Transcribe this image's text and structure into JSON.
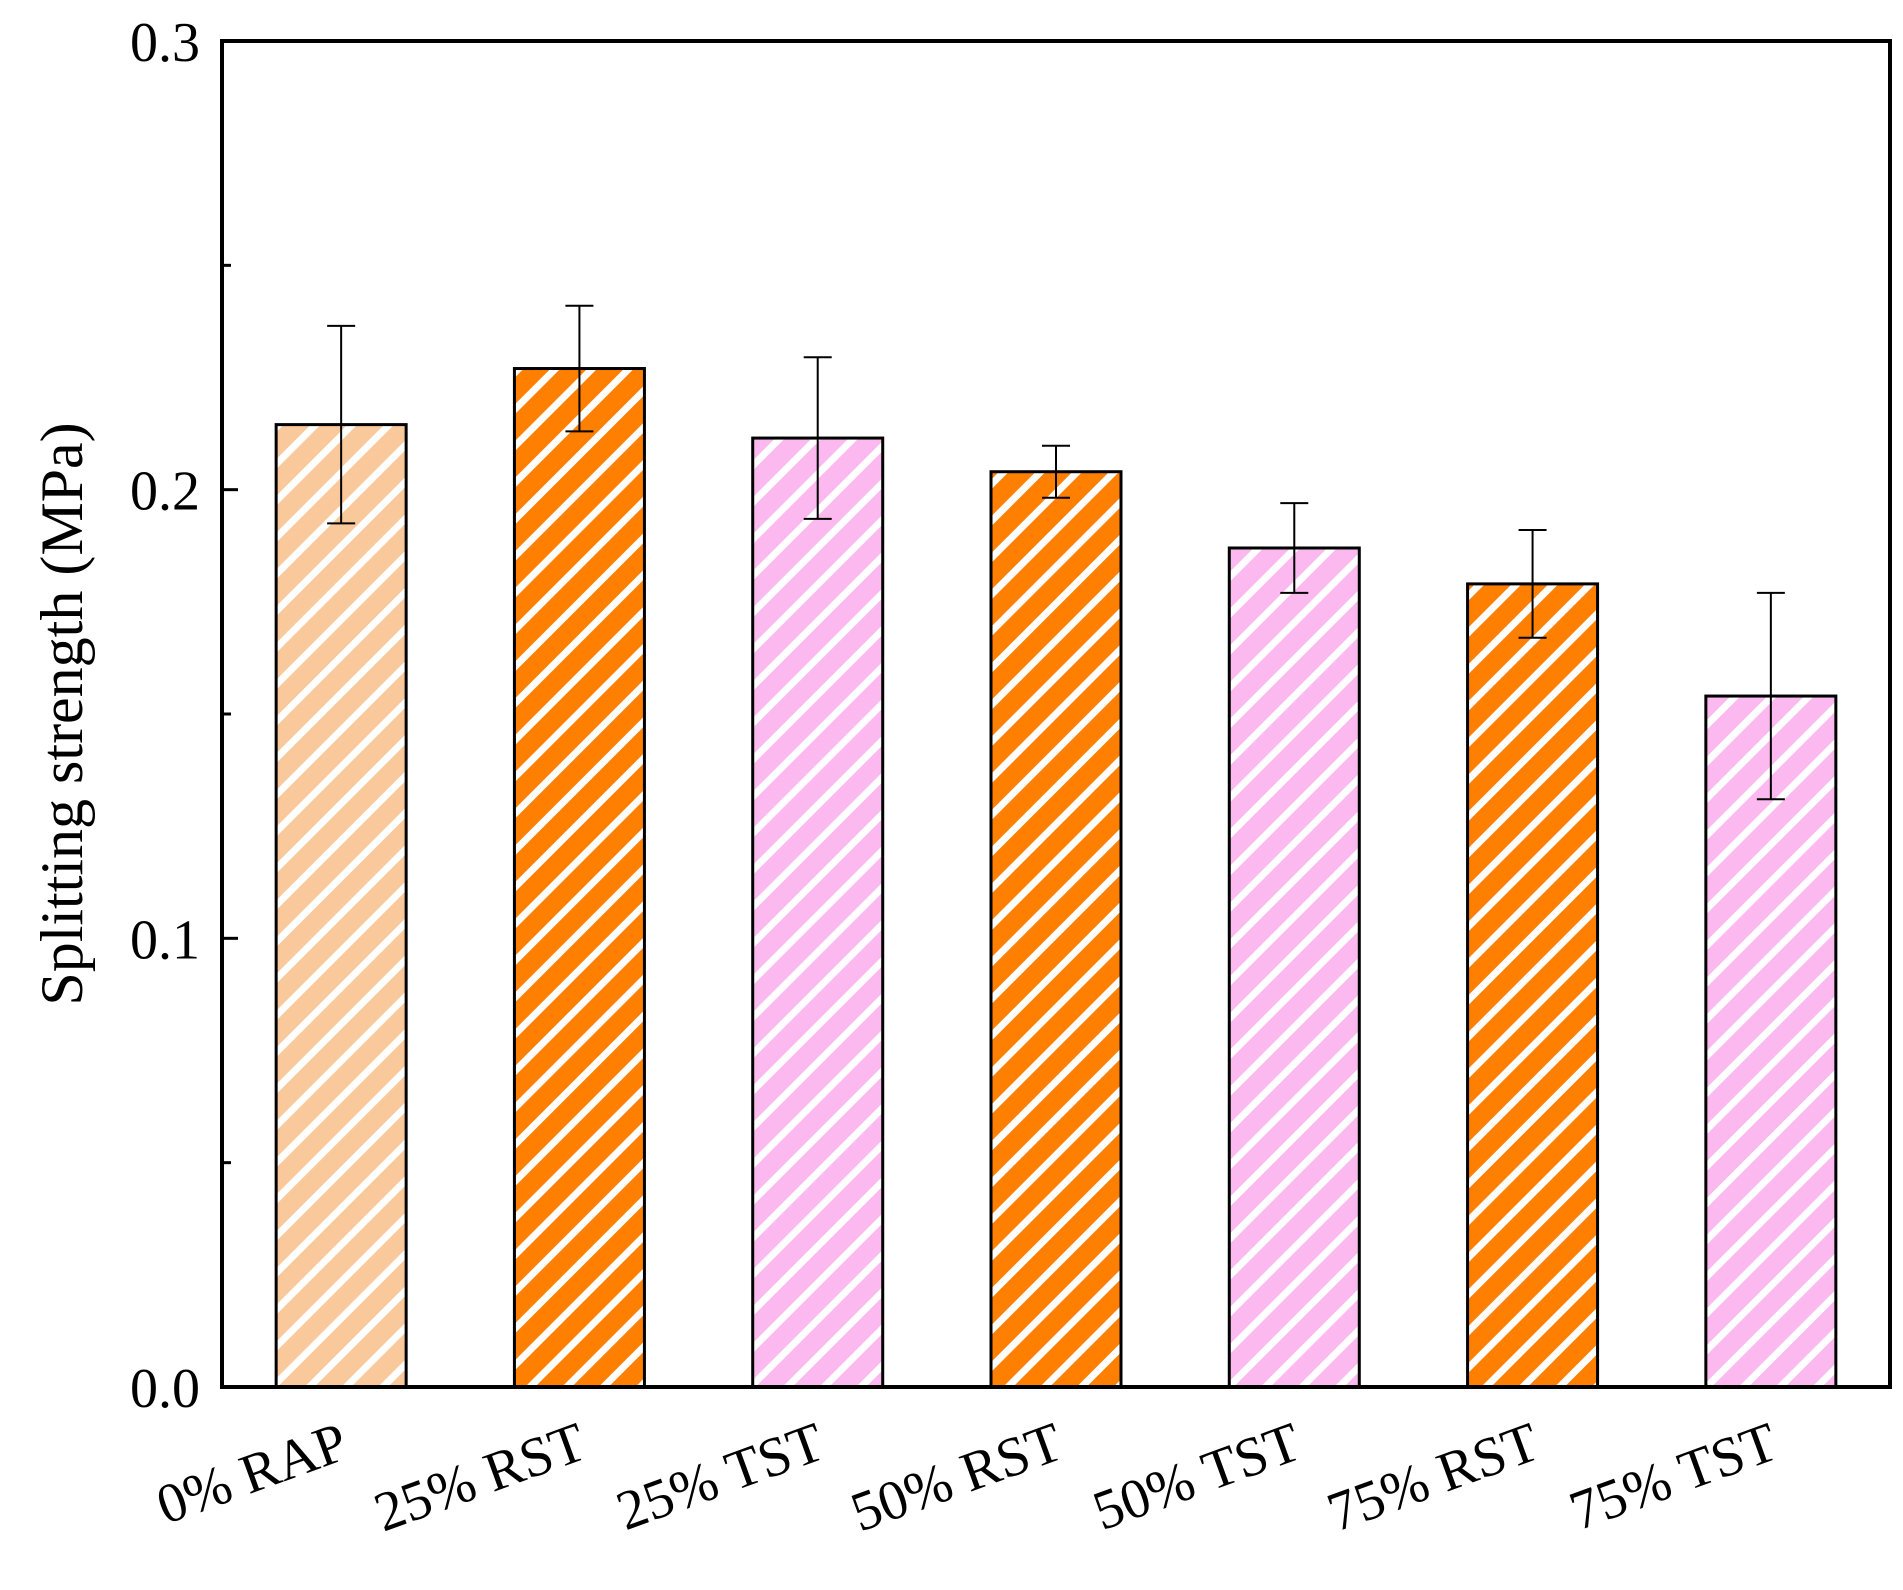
{
  "chart_data": {
    "type": "bar",
    "title": "",
    "xlabel": "",
    "ylabel": "Splitting strength (MPa)",
    "ylim": [
      0,
      0.3
    ],
    "yticks": [
      "0.0",
      "0.1",
      "0.2",
      "0.3"
    ],
    "grid": false,
    "categories": [
      "0% RAP",
      "25% RST",
      "25% TST",
      "50% RST",
      "50% TST",
      "75% RST",
      "75% TST"
    ],
    "values": [
      0.2145,
      0.227,
      0.2115,
      0.204,
      0.187,
      0.179,
      0.154
    ],
    "errors": [
      0.022,
      0.014,
      0.018,
      0.0058,
      0.01,
      0.012,
      0.023
    ],
    "colors": [
      "#f9c89b",
      "#ff7f00",
      "#fbb9ef",
      "#ff7f00",
      "#fbb9ef",
      "#ff7f00",
      "#fbb9ef"
    ],
    "pattern": "diagonal-hatch"
  }
}
